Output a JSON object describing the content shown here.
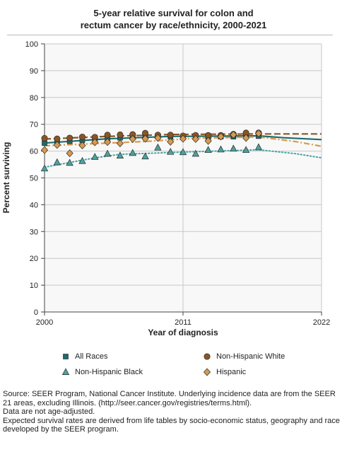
{
  "chart_data": {
    "type": "line",
    "title_lines": [
      "5-year relative survival for colon and",
      "rectum cancer by race/ethnicity, 2000-2021"
    ],
    "xlabel": "Year of diagnosis",
    "ylabel": "Percent surviving",
    "xlim": [
      2000,
      2022
    ],
    "ylim": [
      0,
      100
    ],
    "x_ticks": [
      "2000",
      "2011",
      "2022"
    ],
    "y_ticks": [
      "0",
      "10",
      "20",
      "30",
      "40",
      "50",
      "60",
      "70",
      "80",
      "90",
      "100"
    ],
    "grid": true,
    "legend_position": "bottom",
    "series": [
      {
        "name": "All Races",
        "marker": "square",
        "color": "#1d6b6b",
        "line_style": "solid",
        "x": [
          2000,
          2001,
          2002,
          2003,
          2004,
          2005,
          2006,
          2007,
          2008,
          2009,
          2010,
          2011,
          2012,
          2013,
          2014,
          2015,
          2016,
          2017
        ],
        "y": [
          63.0,
          63.4,
          63.7,
          64.0,
          64.2,
          64.8,
          65.0,
          65.2,
          65.4,
          65.4,
          65.4,
          65.1,
          65.0,
          65.2,
          65.4,
          65.4,
          65.5,
          65.6
        ],
        "trend_x": [
          2000,
          2005,
          2010,
          2017,
          2019,
          2022
        ],
        "trend_y": [
          63.0,
          64.6,
          65.5,
          65.7,
          65.0,
          64.3
        ]
      },
      {
        "name": "Non-Hispanic White",
        "marker": "circle",
        "color": "#8a5526",
        "line_style": "dashed",
        "x": [
          2000,
          2001,
          2002,
          2003,
          2004,
          2005,
          2006,
          2007,
          2008,
          2009,
          2010,
          2011,
          2012,
          2013,
          2014,
          2015,
          2016,
          2017
        ],
        "y": [
          64.8,
          64.6,
          64.9,
          65.3,
          65.2,
          66.0,
          66.1,
          66.2,
          66.7,
          66.0,
          66.0,
          65.7,
          65.9,
          65.9,
          65.9,
          66.3,
          66.8,
          66.8
        ],
        "trend_x": [
          2000,
          2005,
          2010,
          2017,
          2022
        ],
        "trend_y": [
          64.5,
          65.5,
          66.2,
          66.4,
          66.4
        ]
      },
      {
        "name": "Non-Hispanic Black",
        "marker": "triangle",
        "color": "#4aa3a0",
        "line_style": "dotted",
        "x": [
          2000,
          2001,
          2002,
          2003,
          2004,
          2005,
          2006,
          2007,
          2008,
          2009,
          2010,
          2011,
          2012,
          2013,
          2014,
          2015,
          2016,
          2017
        ],
        "y": [
          53.5,
          55.8,
          55.6,
          56.3,
          57.8,
          59.0,
          58.3,
          59.3,
          58.0,
          61.3,
          59.7,
          59.6,
          59.0,
          60.4,
          60.6,
          60.9,
          60.4,
          61.4
        ],
        "trend_x": [
          2000,
          2004,
          2006,
          2012,
          2017,
          2020,
          2022
        ],
        "trend_y": [
          54.0,
          57.5,
          58.8,
          59.8,
          60.5,
          59.0,
          57.5
        ]
      },
      {
        "name": "Hispanic",
        "marker": "diamond",
        "color": "#d89a4e",
        "line_style": "dashdot",
        "x": [
          2000,
          2001,
          2002,
          2003,
          2004,
          2005,
          2006,
          2007,
          2008,
          2009,
          2010,
          2011,
          2012,
          2013,
          2014,
          2015,
          2016,
          2017
        ],
        "y": [
          60.4,
          62.3,
          59.2,
          62.1,
          63.3,
          63.4,
          62.9,
          64.5,
          64.6,
          64.9,
          63.5,
          64.6,
          64.5,
          63.8,
          65.4,
          66.1,
          64.9,
          66.6
        ],
        "trend_x": [
          2000,
          2004,
          2008,
          2012,
          2017,
          2020,
          2022
        ],
        "trend_y": [
          62.0,
          62.8,
          63.6,
          64.8,
          65.3,
          63.5,
          61.8
        ]
      }
    ]
  },
  "notes": [
    "Source: SEER Program, National Cancer Institute. Underlying incidence data are from the SEER 21 areas, excluding Illinois. (http://seer.cancer.gov/registries/terms.html).",
    "Data are not age-adjusted.",
    "Expected survival rates are derived from life tables by socio-economic status, geography and race developed by the SEER program."
  ]
}
